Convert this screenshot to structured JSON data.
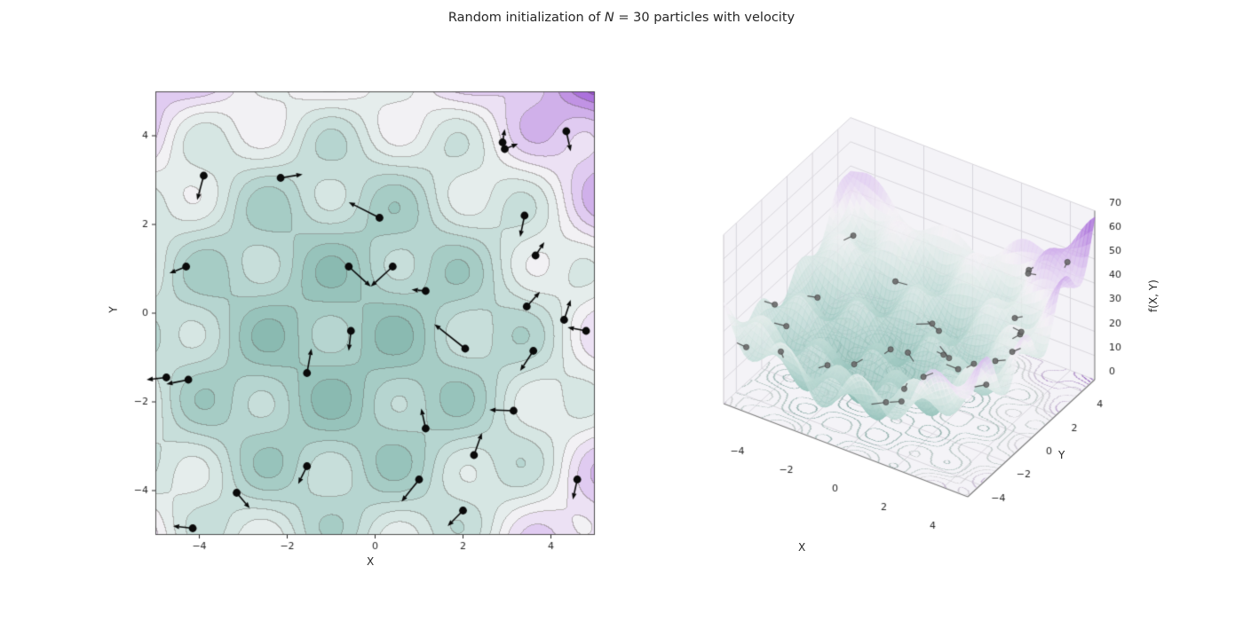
{
  "figure": {
    "title": {
      "prefix": "Random initialization of ",
      "var": "N",
      "suffix": " = 30 particles with velocity"
    },
    "background": "#ffffff"
  },
  "chart_data": [
    {
      "id": "particles-2d",
      "type": "contour-quiver",
      "xlabel": "X",
      "ylabel": "Y",
      "xlim": [
        -5,
        5
      ],
      "ylim": [
        -5,
        5
      ],
      "xticks": [
        -4,
        -2,
        0,
        2,
        4
      ],
      "yticks": [
        -4,
        -2,
        0,
        2,
        4
      ],
      "grid": false,
      "levels": {
        "min": 0,
        "max": 70,
        "step": 5
      },
      "surface_function": {
        "formula": "f(x,y) = 0.8*((x+0.8)^2 + (y+0.8)^2) + 9*(1 - cos(2.0944*(x+1))*cos(2.0944*(y-1)))",
        "cx": -0.8,
        "cy": -0.8,
        "scale": 0.8,
        "amp": 9,
        "omega": 2.0944,
        "sx": 1,
        "sy": -1
      },
      "colormap": {
        "name": "teal-white-purple",
        "stops": [
          [
            0.0,
            "#84b5ac"
          ],
          [
            0.15,
            "#9fc8c1"
          ],
          [
            0.3,
            "#c2dcd7"
          ],
          [
            0.45,
            "#e2ecea"
          ],
          [
            0.55,
            "#f5f2f6"
          ],
          [
            0.68,
            "#e0cbf1"
          ],
          [
            0.82,
            "#c194e4"
          ],
          [
            1.0,
            "#8e3ecf"
          ]
        ]
      },
      "marker_color": "#0a0a0a",
      "arrow_color": "#0a0a0a",
      "particle_count": 30,
      "particles": [
        {
          "x": -3.9,
          "y": 3.1,
          "vx": -0.15,
          "vy": -0.55
        },
        {
          "x": -2.15,
          "y": 3.05,
          "vx": 0.5,
          "vy": 0.08
        },
        {
          "x": 0.1,
          "y": 2.15,
          "vx": -0.7,
          "vy": 0.35
        },
        {
          "x": 2.9,
          "y": 3.85,
          "vx": 0.05,
          "vy": 0.3
        },
        {
          "x": 2.95,
          "y": 3.7,
          "vx": 0.3,
          "vy": 0.12
        },
        {
          "x": 4.35,
          "y": 4.1,
          "vx": 0.1,
          "vy": -0.45
        },
        {
          "x": 3.4,
          "y": 2.2,
          "vx": -0.1,
          "vy": -0.48
        },
        {
          "x": 3.65,
          "y": 1.3,
          "vx": 0.2,
          "vy": 0.3
        },
        {
          "x": -4.3,
          "y": 1.05,
          "vx": -0.38,
          "vy": -0.15
        },
        {
          "x": -0.6,
          "y": 1.05,
          "vx": 0.5,
          "vy": -0.45
        },
        {
          "x": 0.4,
          "y": 1.05,
          "vx": -0.5,
          "vy": -0.45
        },
        {
          "x": 1.15,
          "y": 0.5,
          "vx": -0.32,
          "vy": 0.03
        },
        {
          "x": 3.45,
          "y": 0.15,
          "vx": 0.3,
          "vy": 0.33
        },
        {
          "x": 4.3,
          "y": -0.15,
          "vx": 0.15,
          "vy": 0.45
        },
        {
          "x": 4.8,
          "y": -0.4,
          "vx": -0.42,
          "vy": 0.08
        },
        {
          "x": -0.55,
          "y": -0.4,
          "vx": -0.05,
          "vy": -0.45
        },
        {
          "x": 2.05,
          "y": -0.8,
          "vx": -0.7,
          "vy": 0.55
        },
        {
          "x": -4.75,
          "y": -1.45,
          "vx": -0.45,
          "vy": -0.05
        },
        {
          "x": -4.25,
          "y": -1.5,
          "vx": -0.5,
          "vy": -0.1
        },
        {
          "x": -1.55,
          "y": -1.35,
          "vx": 0.1,
          "vy": 0.55
        },
        {
          "x": 3.6,
          "y": -0.85,
          "vx": -0.3,
          "vy": -0.45
        },
        {
          "x": 3.15,
          "y": -2.2,
          "vx": -0.55,
          "vy": 0.02
        },
        {
          "x": 1.15,
          "y": -2.6,
          "vx": -0.1,
          "vy": 0.45
        },
        {
          "x": 2.25,
          "y": -3.2,
          "vx": 0.18,
          "vy": 0.5
        },
        {
          "x": 1.0,
          "y": -3.75,
          "vx": -0.4,
          "vy": -0.5
        },
        {
          "x": -1.55,
          "y": -3.45,
          "vx": -0.2,
          "vy": -0.4
        },
        {
          "x": -3.15,
          "y": -4.05,
          "vx": 0.3,
          "vy": -0.35
        },
        {
          "x": -4.15,
          "y": -4.85,
          "vx": -0.45,
          "vy": 0.05
        },
        {
          "x": 2.0,
          "y": -4.45,
          "vx": -0.35,
          "vy": -0.35
        },
        {
          "x": 4.6,
          "y": -3.75,
          "vx": -0.1,
          "vy": -0.45
        }
      ]
    },
    {
      "id": "surface-3d",
      "type": "surface",
      "xlabel": "X",
      "ylabel": "Y",
      "zlabel": "f(X, Y)",
      "xticks": [
        -4,
        -2,
        0,
        2,
        4
      ],
      "yticks": [
        -4,
        -2,
        0,
        2,
        4
      ],
      "zticks": [
        0,
        10,
        20,
        30,
        40,
        50,
        60,
        70
      ],
      "zlim": [
        0,
        70
      ],
      "marker_color_3d": "#6e6e6e",
      "view": {
        "elev": 30,
        "azim": -60
      }
    }
  ]
}
